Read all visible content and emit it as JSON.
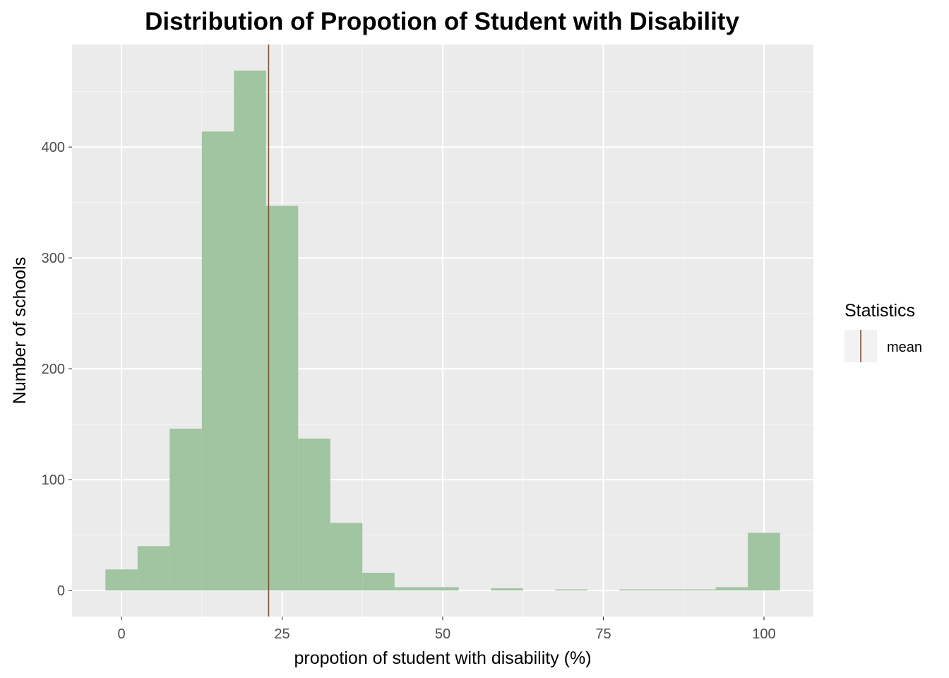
{
  "chart_data": {
    "type": "bar",
    "title": "Distribution of Propotion of Student with Disability",
    "xlabel": "propotion of student with disability (%)",
    "ylabel": "Number of schools",
    "bin_width": 5,
    "bins": [
      {
        "x_start": -2.5,
        "x_end": 2.5,
        "count": 19
      },
      {
        "x_start": 2.5,
        "x_end": 7.5,
        "count": 40
      },
      {
        "x_start": 7.5,
        "x_end": 12.5,
        "count": 146
      },
      {
        "x_start": 12.5,
        "x_end": 17.5,
        "count": 414
      },
      {
        "x_start": 17.5,
        "x_end": 22.5,
        "count": 469
      },
      {
        "x_start": 22.5,
        "x_end": 27.5,
        "count": 347
      },
      {
        "x_start": 27.5,
        "x_end": 32.5,
        "count": 137
      },
      {
        "x_start": 32.5,
        "x_end": 37.5,
        "count": 61
      },
      {
        "x_start": 37.5,
        "x_end": 42.5,
        "count": 16
      },
      {
        "x_start": 42.5,
        "x_end": 47.5,
        "count": 3
      },
      {
        "x_start": 47.5,
        "x_end": 52.5,
        "count": 3
      },
      {
        "x_start": 52.5,
        "x_end": 57.5,
        "count": 0
      },
      {
        "x_start": 57.5,
        "x_end": 62.5,
        "count": 2
      },
      {
        "x_start": 62.5,
        "x_end": 67.5,
        "count": 0
      },
      {
        "x_start": 67.5,
        "x_end": 72.5,
        "count": 1
      },
      {
        "x_start": 72.5,
        "x_end": 77.5,
        "count": 0
      },
      {
        "x_start": 77.5,
        "x_end": 82.5,
        "count": 1
      },
      {
        "x_start": 82.5,
        "x_end": 87.5,
        "count": 1
      },
      {
        "x_start": 87.5,
        "x_end": 92.5,
        "count": 1
      },
      {
        "x_start": 92.5,
        "x_end": 97.5,
        "count": 3
      },
      {
        "x_start": 97.5,
        "x_end": 102.5,
        "count": 52
      }
    ],
    "mean": 22.9,
    "xlim": [
      -7.7,
      107.7
    ],
    "ylim": [
      -23.5,
      492.5
    ],
    "x_ticks": [
      0,
      25,
      50,
      75,
      100
    ],
    "x_tick_labels": [
      "0",
      "25",
      "50",
      "75",
      "100"
    ],
    "y_ticks": [
      0,
      100,
      200,
      300,
      400
    ],
    "y_tick_labels": [
      "0",
      "100",
      "200",
      "300",
      "400"
    ],
    "grid": true,
    "legend": {
      "title": "Statistics",
      "position": "right",
      "items": [
        {
          "label": "mean"
        }
      ]
    },
    "colors": {
      "panel_background": "#ebebeb",
      "grid_major": "#ffffff",
      "grid_minor": "#f5f5f5",
      "bar_fill": "#a1c4a1",
      "mean_line": "#7b5237",
      "legend_key_background": "#f2f2f2"
    }
  }
}
